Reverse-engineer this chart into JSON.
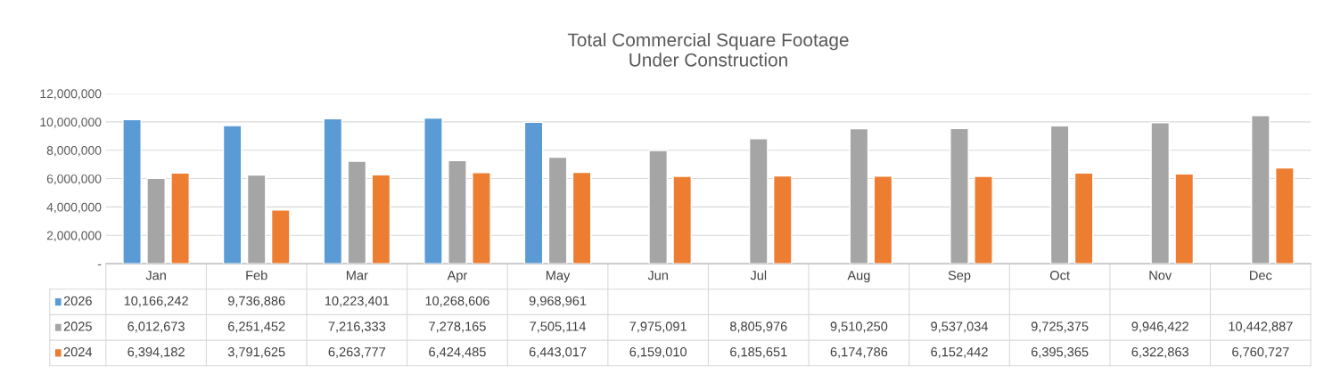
{
  "chart_data": {
    "type": "bar",
    "title": "Total Commercial Square Footage\nUnder Construction",
    "categories": [
      "Jan",
      "Feb",
      "Mar",
      "Apr",
      "May",
      "Jun",
      "Jul",
      "Aug",
      "Sep",
      "Oct",
      "Nov",
      "Dec"
    ],
    "series": [
      {
        "name": "2026",
        "color": "#5b9bd5",
        "values": [
          10166242,
          9736886,
          10223401,
          10268606,
          9968961,
          null,
          null,
          null,
          null,
          null,
          null,
          null
        ],
        "value_labels": [
          "10,166,242",
          "9,736,886",
          "10,223,401",
          "10,268,606",
          "9,968,961",
          null,
          null,
          null,
          null,
          null,
          null,
          null
        ]
      },
      {
        "name": "2025",
        "color": "#a5a5a5",
        "values": [
          6012673,
          6251452,
          7216333,
          7278165,
          7505114,
          7975091,
          8805976,
          9510250,
          9537034,
          9725375,
          9946422,
          10442887
        ],
        "value_labels": [
          "6,012,673",
          "6,251,452",
          "7,216,333",
          "7,278,165",
          "7,505,114",
          "7,975,091",
          "8,805,976",
          "9,510,250",
          "9,537,034",
          "9,725,375",
          "9,946,422",
          "10,442,887"
        ]
      },
      {
        "name": "2024",
        "color": "#ed7d31",
        "values": [
          6394182,
          3791625,
          6263777,
          6424485,
          6443017,
          6159010,
          6185651,
          6174786,
          6152442,
          6395365,
          6322863,
          6760727
        ],
        "value_labels": [
          "6,394,182",
          "3,791,625",
          "6,263,777",
          "6,424,485",
          "6,443,017",
          "6,159,010",
          "6,185,651",
          "6,174,786",
          "6,152,442",
          "6,395,365",
          "6,322,863",
          "6,760,727"
        ]
      }
    ],
    "ylim": [
      0,
      12000000
    ],
    "yticks": [
      {
        "value": 0,
        "label": "-"
      },
      {
        "value": 2000000,
        "label": "2,000,000"
      },
      {
        "value": 4000000,
        "label": "4,000,000"
      },
      {
        "value": 6000000,
        "label": "6,000,000"
      },
      {
        "value": 8000000,
        "label": "8,000,000"
      },
      {
        "value": 10000000,
        "label": "10,000,000"
      },
      {
        "value": 12000000,
        "label": "12,000,000"
      }
    ],
    "grid": "y",
    "legend": "bottom"
  }
}
